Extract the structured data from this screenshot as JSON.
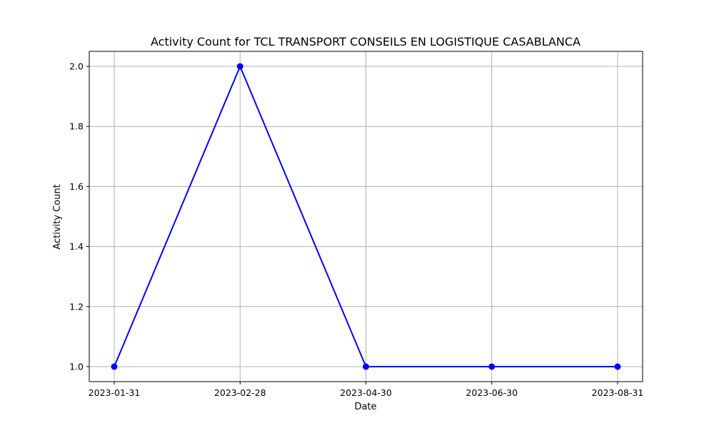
{
  "chart_data": {
    "type": "line",
    "title": "Activity Count for TCL TRANSPORT CONSEILS EN LOGISTIQUE CASABLANCA",
    "xlabel": "Date",
    "ylabel": "Activity Count",
    "categories": [
      "2023-01-31",
      "2023-02-28",
      "2023-04-30",
      "2023-06-30",
      "2023-08-31"
    ],
    "series": [
      {
        "values": [
          1,
          2,
          1,
          1,
          1
        ],
        "color": "#0000ff"
      }
    ],
    "y_ticks": [
      "1.0",
      "1.2",
      "1.4",
      "1.6",
      "1.8",
      "2.0"
    ],
    "ylim": [
      0.95,
      2.05
    ],
    "grid": true,
    "marker": "circle"
  }
}
